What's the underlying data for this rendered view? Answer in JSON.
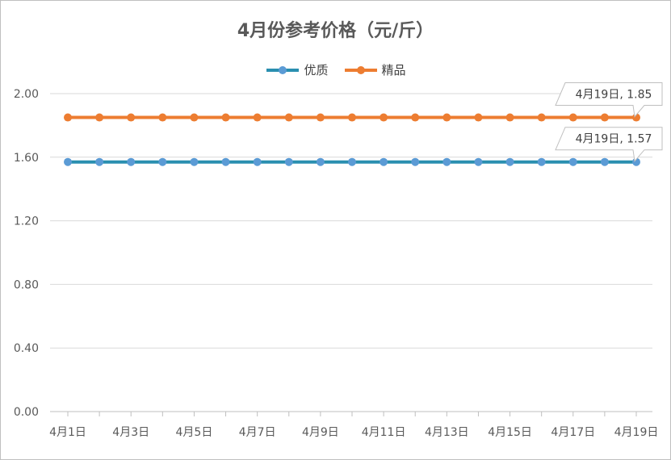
{
  "chart_data": {
    "type": "line",
    "title": "4月份参考价格（元/斤）",
    "categories": [
      "4月1日",
      "4月2日",
      "4月3日",
      "4月4日",
      "4月5日",
      "4月6日",
      "4月7日",
      "4月8日",
      "4月9日",
      "4月10日",
      "4月11日",
      "4月12日",
      "4月13日",
      "4月14日",
      "4月15日",
      "4月16日",
      "4月17日",
      "4月18日",
      "4月19日"
    ],
    "x_tick_labels": [
      "4月1日",
      "4月3日",
      "4月5日",
      "4月7日",
      "4月9日",
      "4月11日",
      "4月13日",
      "4月15日",
      "4月17日",
      "4月19日"
    ],
    "y_tick_labels": [
      "0.00",
      "0.40",
      "0.80",
      "1.20",
      "1.60",
      "2.00"
    ],
    "ylim": [
      0,
      2.0
    ],
    "legend_position": "top",
    "grid": true,
    "series": [
      {
        "name": "优质",
        "color": "#2a8fb0",
        "marker_color": "#5b9bd5",
        "values": [
          1.57,
          1.57,
          1.57,
          1.57,
          1.57,
          1.57,
          1.57,
          1.57,
          1.57,
          1.57,
          1.57,
          1.57,
          1.57,
          1.57,
          1.57,
          1.57,
          1.57,
          1.57,
          1.57
        ]
      },
      {
        "name": "精品",
        "color": "#ed7d31",
        "marker_color": "#ed7d31",
        "values": [
          1.85,
          1.85,
          1.85,
          1.85,
          1.85,
          1.85,
          1.85,
          1.85,
          1.85,
          1.85,
          1.85,
          1.85,
          1.85,
          1.85,
          1.85,
          1.85,
          1.85,
          1.85,
          1.85
        ]
      }
    ],
    "annotations": [
      {
        "series": "精品",
        "text": "4月19日, 1.85"
      },
      {
        "series": "优质",
        "text": "4月19日, 1.57"
      }
    ]
  }
}
